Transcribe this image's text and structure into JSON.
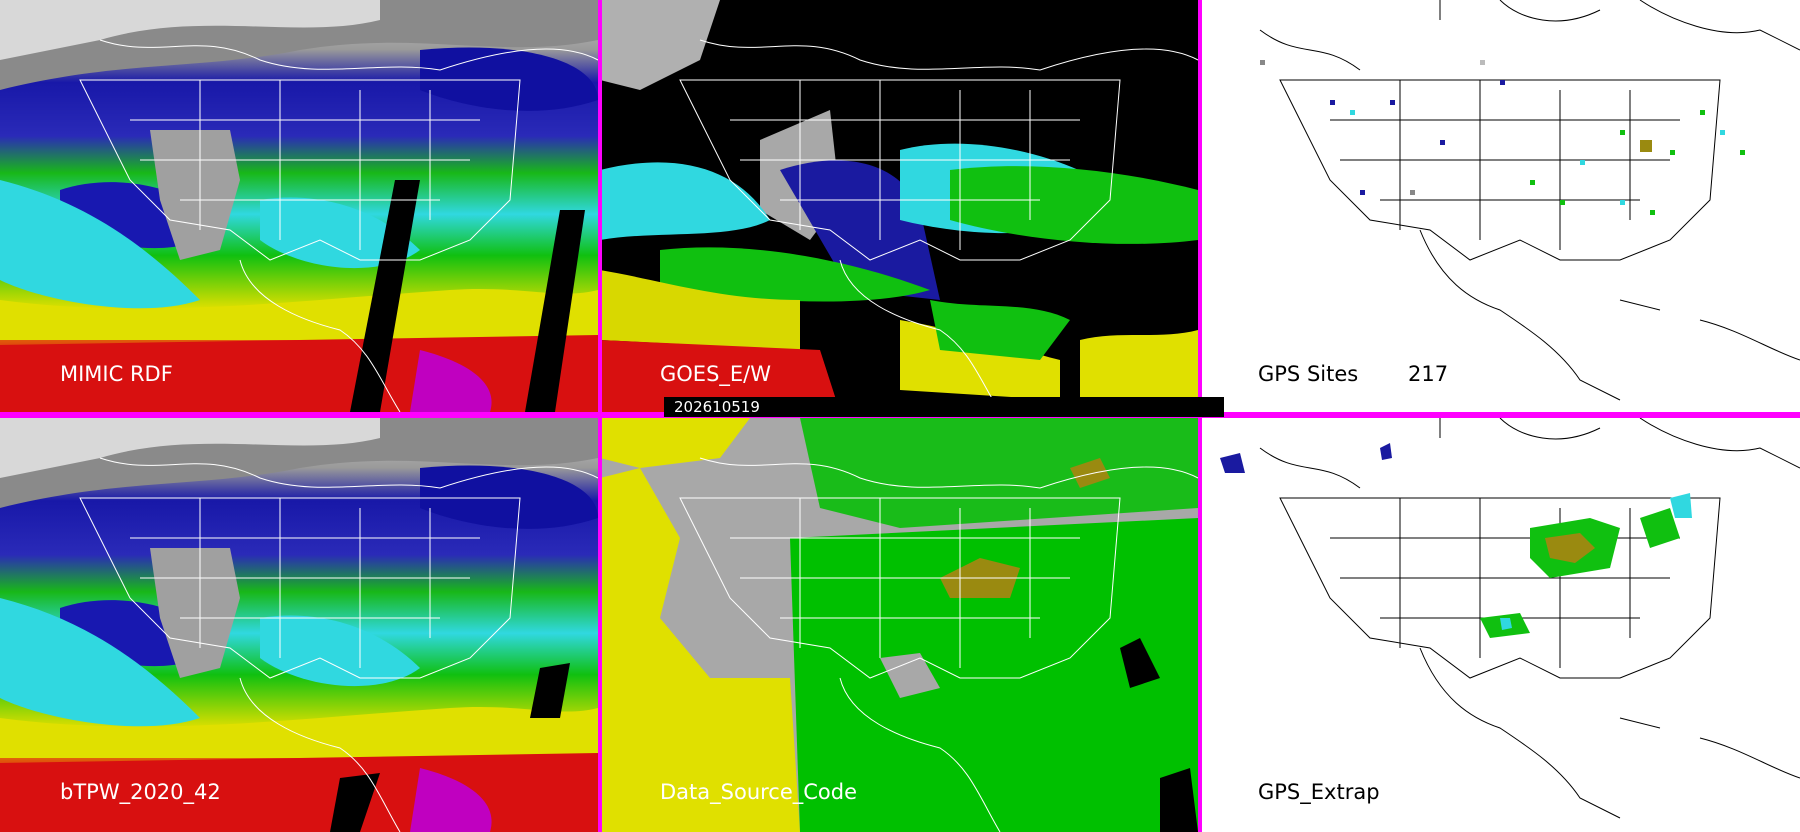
{
  "panels": {
    "mimic_rdf": {
      "label": "MIMIC RDF"
    },
    "goes": {
      "label": "GOES_E/W",
      "timestamp": "202610519"
    },
    "gps_sites": {
      "label": "GPS Sites",
      "count": "217"
    },
    "btpw": {
      "label": "bTPW_2020_42"
    },
    "data_source": {
      "label": "Data_Source_Code"
    },
    "gps_extrap": {
      "label": "GPS_Extrap"
    }
  },
  "colors": {
    "separator": "#ff00ff",
    "tpw_scale": [
      "#d0d0d0",
      "#1a1aa0",
      "#30d8e0",
      "#10c010",
      "#e0e000",
      "#d81010",
      "#c000c0"
    ]
  }
}
